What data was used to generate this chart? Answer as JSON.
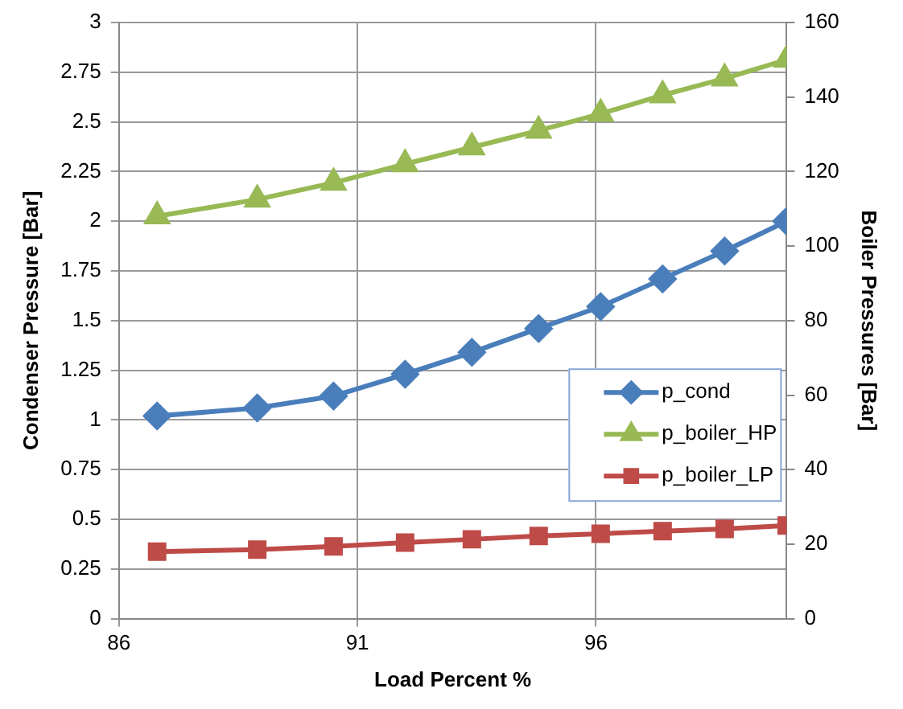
{
  "chart_data": {
    "type": "line",
    "xlabel": "Load Percent %",
    "ylabel": "Condenser Pressure [Bar]",
    "y2label": "Boiler Pressures [Bar]",
    "x": [
      86.8,
      88.9,
      90.5,
      92.0,
      93.4,
      94.8,
      96.1,
      97.4,
      98.7,
      100
    ],
    "xlim": [
      86,
      100
    ],
    "xticks": [
      86,
      91,
      96
    ],
    "ylim": [
      0,
      3
    ],
    "yticks": [
      0,
      0.25,
      0.5,
      0.75,
      1,
      1.25,
      1.5,
      1.75,
      2,
      2.25,
      2.5,
      2.75,
      3
    ],
    "y2lim": [
      0,
      160
    ],
    "y2ticks": [
      0,
      20,
      40,
      60,
      80,
      100,
      120,
      140,
      160
    ],
    "grid": true,
    "legend": "right",
    "line_style": "solid",
    "series": [
      {
        "name": "p_cond",
        "color": "#4a7ebb",
        "marker": "diamond",
        "values": [
          1.02,
          1.06,
          1.12,
          1.23,
          1.34,
          1.46,
          1.57,
          1.71,
          1.85,
          2.0
        ]
      },
      {
        "name": "p_boiler_HP",
        "color": "#98b954",
        "marker": "triangle",
        "axis": "y2",
        "values": [
          108,
          112.5,
          117,
          122,
          126.5,
          131,
          135.5,
          140.5,
          145,
          150
        ]
      },
      {
        "name": "p_boiler_LP",
        "color": "#be4b48",
        "marker": "square",
        "axis": "y2",
        "values": [
          18,
          18.5,
          19.4,
          20.4,
          21.3,
          22.2,
          22.8,
          23.5,
          24.1,
          25
        ]
      }
    ]
  }
}
